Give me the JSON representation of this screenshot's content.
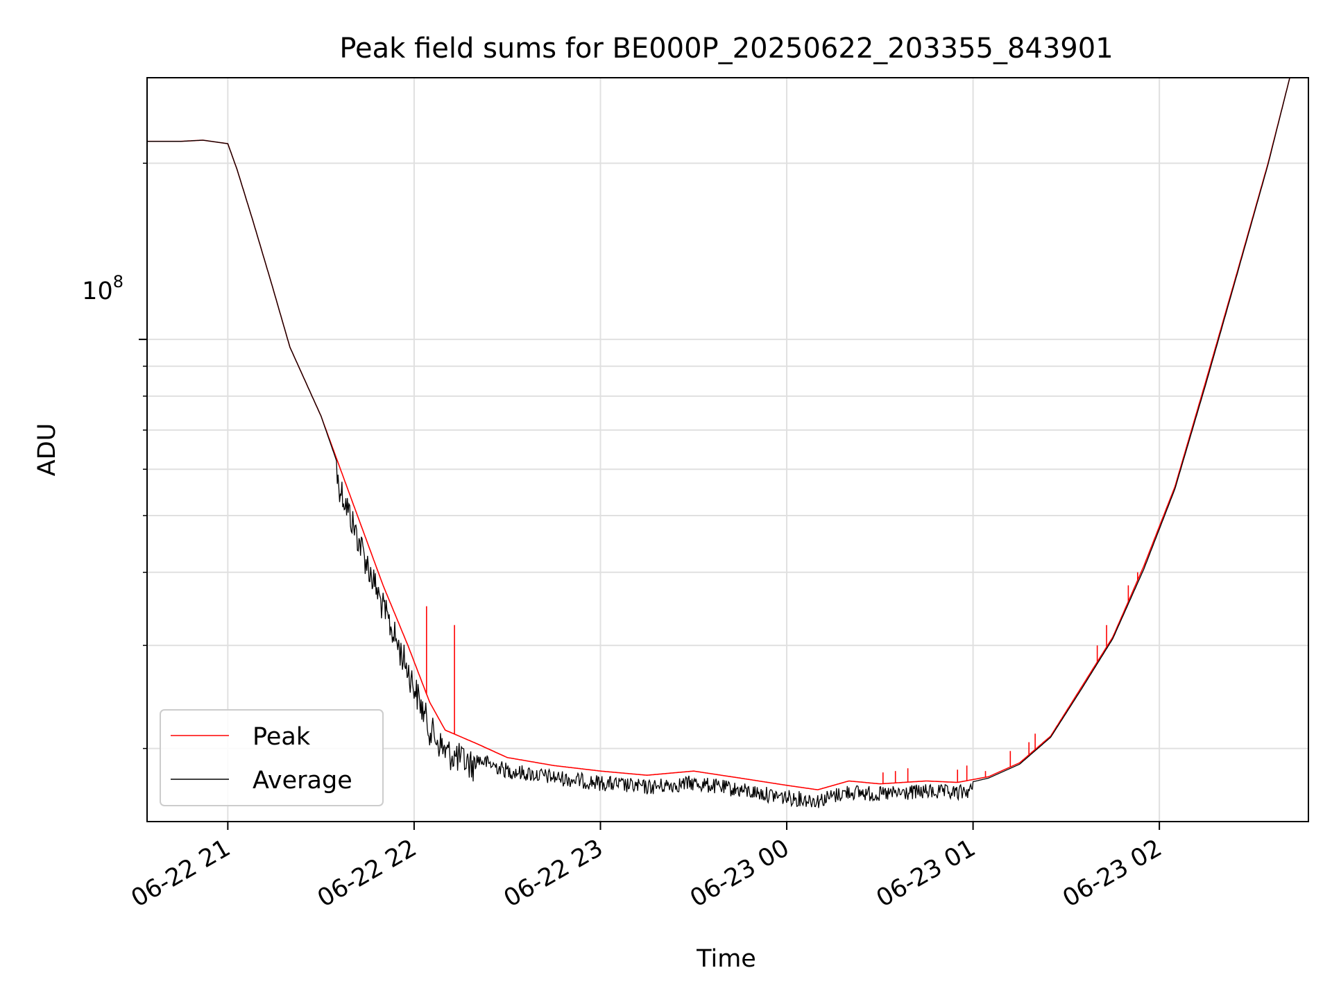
{
  "chart_data": {
    "type": "line",
    "title": "Peak field sums for BE000P_20250622_203355_843901",
    "xlabel": "Time",
    "ylabel": "ADU",
    "yscale": "log",
    "grid": true,
    "legend_placement": "lower-left",
    "xlim": [
      "2025-06-22 20:34",
      "2025-06-23 02:48"
    ],
    "ylim": [
      15000000,
      280000000
    ],
    "x_ticks": [
      "06-22 21",
      "06-22 22",
      "06-22 23",
      "06-23 00",
      "06-23 01",
      "06-23 02"
    ],
    "y_tick_label": {
      "base": "10",
      "exponent": "8",
      "value": 100000000
    },
    "series": [
      {
        "name": "Peak",
        "color": "#ff0000",
        "points": [
          [
            "2025-06-22 20:34",
            218000000
          ],
          [
            "2025-06-22 20:45",
            218000000
          ],
          [
            "2025-06-22 20:52",
            219000000
          ],
          [
            "2025-06-22 21:00",
            216000000
          ],
          [
            "2025-06-22 21:03",
            195000000
          ],
          [
            "2025-06-22 21:08",
            160000000
          ],
          [
            "2025-06-22 21:14",
            125000000
          ],
          [
            "2025-06-22 21:20",
            97000000
          ],
          [
            "2025-06-22 21:30",
            74000000
          ],
          [
            "2025-06-22 21:40",
            53000000
          ],
          [
            "2025-06-22 21:50",
            38000000
          ],
          [
            "2025-06-22 21:58",
            30000000
          ],
          [
            "2025-06-22 22:05",
            24000000
          ],
          [
            "2025-06-22 22:10",
            21500000
          ],
          [
            "2025-06-22 22:20",
            20400000
          ],
          [
            "2025-06-22 22:30",
            19300000
          ],
          [
            "2025-06-22 22:45",
            18700000
          ],
          [
            "2025-06-22 23:00",
            18300000
          ],
          [
            "2025-06-22 23:15",
            18000000
          ],
          [
            "2025-06-22 23:30",
            18300000
          ],
          [
            "2025-06-22 23:45",
            17800000
          ],
          [
            "2025-06-23 00:00",
            17300000
          ],
          [
            "2025-06-23 00:10",
            17000000
          ],
          [
            "2025-06-23 00:20",
            17600000
          ],
          [
            "2025-06-23 00:30",
            17400000
          ],
          [
            "2025-06-23 00:45",
            17600000
          ],
          [
            "2025-06-23 00:55",
            17500000
          ],
          [
            "2025-06-23 01:05",
            17900000
          ],
          [
            "2025-06-23 01:15",
            18900000
          ],
          [
            "2025-06-23 01:25",
            21000000
          ],
          [
            "2025-06-23 01:35",
            25500000
          ],
          [
            "2025-06-23 01:45",
            31000000
          ],
          [
            "2025-06-23 01:55",
            41000000
          ],
          [
            "2025-06-23 02:05",
            56000000
          ],
          [
            "2025-06-23 02:15",
            85000000
          ],
          [
            "2025-06-23 02:25",
            130000000
          ],
          [
            "2025-06-23 02:35",
            200000000
          ],
          [
            "2025-06-23 02:42",
            280000000
          ]
        ],
        "spikes": [
          [
            "2025-06-22 22:04",
            35000000
          ],
          [
            "2025-06-22 22:13",
            32500000
          ],
          [
            "2025-06-23 00:31",
            18200000
          ],
          [
            "2025-06-23 00:35",
            18300000
          ],
          [
            "2025-06-23 00:39",
            18500000
          ],
          [
            "2025-06-23 00:55",
            18400000
          ],
          [
            "2025-06-23 00:58",
            18700000
          ],
          [
            "2025-06-23 01:04",
            18300000
          ],
          [
            "2025-06-23 01:12",
            19800000
          ],
          [
            "2025-06-23 01:18",
            20500000
          ],
          [
            "2025-06-23 01:20",
            21200000
          ],
          [
            "2025-06-23 01:40",
            30000000
          ],
          [
            "2025-06-23 01:43",
            32500000
          ],
          [
            "2025-06-23 01:50",
            38000000
          ],
          [
            "2025-06-23 01:53",
            40000000
          ]
        ]
      },
      {
        "name": "Average",
        "color": "#000000",
        "points": [
          [
            "2025-06-22 20:34",
            218000000
          ],
          [
            "2025-06-22 20:45",
            218000000
          ],
          [
            "2025-06-22 20:52",
            219000000
          ],
          [
            "2025-06-22 21:00",
            216000000
          ],
          [
            "2025-06-22 21:03",
            195000000
          ],
          [
            "2025-06-22 21:08",
            160000000
          ],
          [
            "2025-06-22 21:14",
            125000000
          ],
          [
            "2025-06-22 21:20",
            97000000
          ],
          [
            "2025-06-22 21:30",
            74000000
          ],
          [
            "2025-06-22 21:40",
            52000000
          ],
          [
            "2025-06-22 21:50",
            37000000
          ],
          [
            "2025-06-22 21:58",
            29000000
          ],
          [
            "2025-06-22 22:05",
            23000000
          ],
          [
            "2025-06-22 22:10",
            21000000
          ],
          [
            "2025-06-22 22:20",
            19800000
          ],
          [
            "2025-06-22 22:30",
            18900000
          ],
          [
            "2025-06-22 22:45",
            18400000
          ],
          [
            "2025-06-22 23:00",
            18000000
          ],
          [
            "2025-06-22 23:15",
            17700000
          ],
          [
            "2025-06-22 23:30",
            18000000
          ],
          [
            "2025-06-22 23:45",
            17500000
          ],
          [
            "2025-06-23 00:00",
            17000000
          ],
          [
            "2025-06-23 00:10",
            16800000
          ],
          [
            "2025-06-23 00:20",
            17400000
          ],
          [
            "2025-06-23 00:30",
            17200000
          ],
          [
            "2025-06-23 00:45",
            17400000
          ],
          [
            "2025-06-23 00:55",
            17300000
          ],
          [
            "2025-06-23 01:05",
            17800000
          ],
          [
            "2025-06-23 01:15",
            18800000
          ],
          [
            "2025-06-23 01:25",
            20900000
          ],
          [
            "2025-06-23 01:35",
            25300000
          ],
          [
            "2025-06-23 01:45",
            30800000
          ],
          [
            "2025-06-23 01:55",
            40500000
          ],
          [
            "2025-06-23 02:05",
            55500000
          ],
          [
            "2025-06-23 02:15",
            84000000
          ],
          [
            "2025-06-23 02:25",
            129000000
          ],
          [
            "2025-06-23 02:35",
            199000000
          ],
          [
            "2025-06-23 02:42",
            280000000
          ]
        ]
      }
    ]
  }
}
